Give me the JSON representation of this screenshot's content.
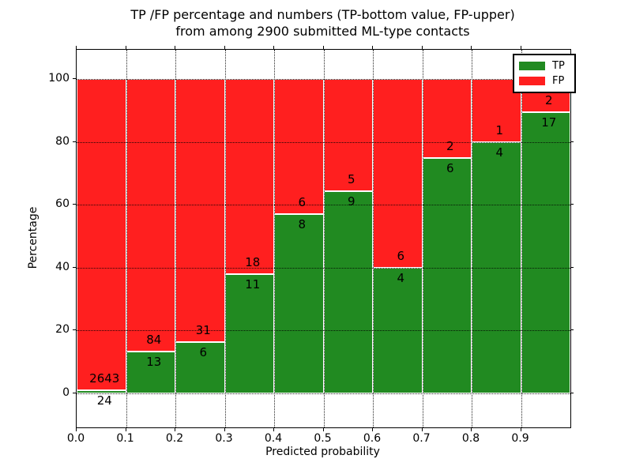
{
  "chart_data": {
    "type": "bar",
    "subtype": "percentage-stacked-histogram",
    "title_line1": "TP /FP percentage and numbers (TP-bottom value, FP-upper)",
    "title_line2": "from among 2900 submitted ML-type contacts",
    "xlabel": "Predicted probability",
    "ylabel": "Percentage",
    "x_tick_labels": [
      "0.0",
      "0.1",
      "0.2",
      "0.3",
      "0.4",
      "0.5",
      "0.6",
      "0.7",
      "0.8",
      "0.9"
    ],
    "y_tick_labels": [
      "0",
      "20",
      "40",
      "60",
      "80",
      "100"
    ],
    "y_ticks": [
      0,
      20,
      40,
      60,
      80,
      100
    ],
    "xlim": [
      0.0,
      1.0
    ],
    "ylim": [
      -11,
      109
    ],
    "grid": "dotted both axes",
    "legend_position": "upper right",
    "series": [
      {
        "name": "TP",
        "color": "#218a21",
        "values": [
          24,
          13,
          6,
          11,
          8,
          9,
          4,
          6,
          4,
          17
        ]
      },
      {
        "name": "FP",
        "color": "#ff1f1f",
        "values": [
          2643,
          84,
          31,
          18,
          6,
          5,
          6,
          2,
          1,
          2
        ]
      }
    ],
    "bin_edges": [
      0.0,
      0.1,
      0.2,
      0.3,
      0.4,
      0.5,
      0.6,
      0.7,
      0.8,
      0.9,
      1.0
    ],
    "bars_show": "each bar height is TP/(TP+FP)*100 for green (bottom) and FP share above, stacked to 100%",
    "total_contacts": "2900",
    "colors": {
      "tp": "#218a21",
      "fp": "#ff1f1f",
      "grid": "#000000",
      "background": "#ffffff",
      "bar_edge": "#ffffff"
    }
  },
  "legend": {
    "items": [
      {
        "label": "TP",
        "color": "#218a21"
      },
      {
        "label": "FP",
        "color": "#ff1f1f"
      }
    ]
  }
}
